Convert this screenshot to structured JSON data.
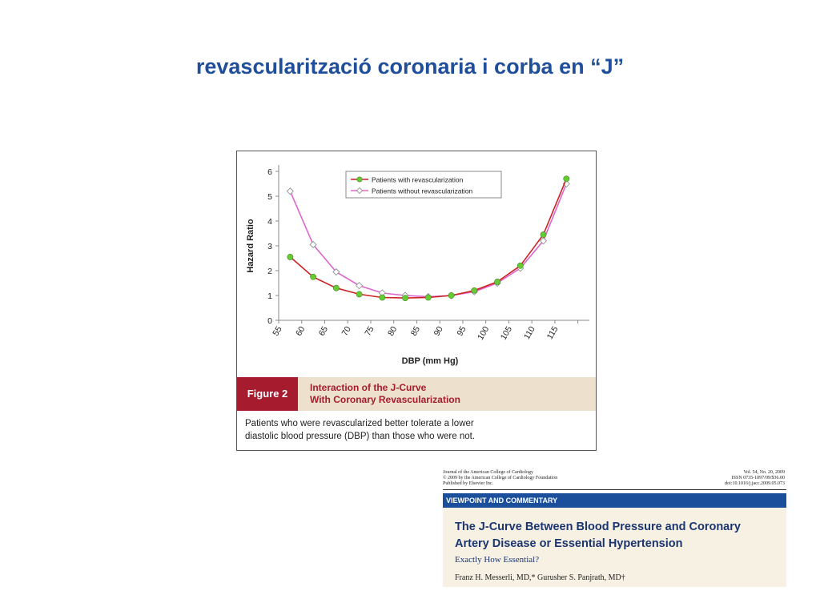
{
  "slide": {
    "title": "revascularització coronaria i corba en “J”"
  },
  "figure": {
    "label": "Figure 2",
    "title_line1": "Interaction of the J-Curve",
    "title_line2": "With Coronary Revascularization",
    "description_line1": "Patients who were revascularized better tolerate a lower",
    "description_line2": "diastolic blood pressure (DBP) than those who were not."
  },
  "chart_data": {
    "type": "line",
    "xlabel": "DBP (mm Hg)",
    "ylabel": "Hazard Ratio",
    "categories": [
      "55",
      "60",
      "65",
      "70",
      "75",
      "80",
      "85",
      "90",
      "95",
      "100",
      "105",
      "110",
      "115"
    ],
    "yticks": [
      "0",
      "1",
      "2",
      "3",
      "4",
      "5",
      "6"
    ],
    "ylim": [
      0,
      6
    ],
    "grid": false,
    "legend_position": "top",
    "series": [
      {
        "name": "Patients with revascularization",
        "color": "#cc2222",
        "marker_color": "#66cc33",
        "marker": "circle",
        "x": [
          57.5,
          62.5,
          67.5,
          72.5,
          77.5,
          82.5,
          87.5,
          92.5,
          97.5,
          102.5,
          107.5,
          112.5,
          117.5
        ],
        "values": [
          2.55,
          1.75,
          1.3,
          1.05,
          0.92,
          0.9,
          0.92,
          1.0,
          1.2,
          1.55,
          2.2,
          3.45,
          5.7
        ]
      },
      {
        "name": "Patients without revascularization",
        "color": "#dd66cc",
        "marker_color": "#ffffff",
        "marker": "diamond",
        "x": [
          57.5,
          62.5,
          67.5,
          72.5,
          77.5,
          82.5,
          87.5,
          92.5,
          97.5,
          102.5,
          107.5,
          112.5,
          117.5
        ],
        "values": [
          5.2,
          3.05,
          1.95,
          1.4,
          1.1,
          1.0,
          0.95,
          1.0,
          1.15,
          1.5,
          2.1,
          3.2,
          5.5
        ]
      }
    ]
  },
  "article": {
    "journal_line1": "Journal of the American College of Cardiology",
    "journal_line2": "© 2009 by the American College of Cardiology Foundation",
    "journal_line3": "Published by Elsevier Inc.",
    "meta_line1": "Vol. 54, No. 20, 2009",
    "meta_line2": "ISSN 0735-1097/09/$36.00",
    "meta_line3": "doi:10.1016/j.jacc.2009.05.073",
    "section": "VIEWPOINT AND COMMENTARY",
    "title_line1": "The J-Curve Between Blood Pressure and Coronary",
    "title_line2": "Artery Disease or Essential Hypertension",
    "subtitle": "Exactly How Essential?",
    "authors": "Franz H. Messerli, MD,* Gurusher S. Panjrath, MD†"
  }
}
